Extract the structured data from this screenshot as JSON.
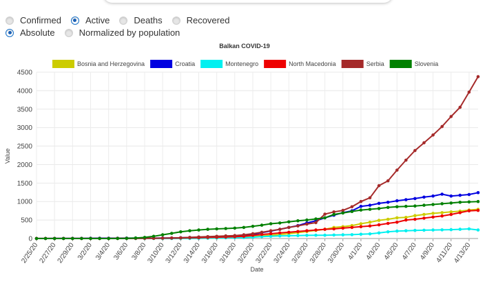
{
  "controls": {
    "metric_options": [
      {
        "label": "Confirmed",
        "selected": false
      },
      {
        "label": "Active",
        "selected": true
      },
      {
        "label": "Deaths",
        "selected": false
      },
      {
        "label": "Recovered",
        "selected": false
      }
    ],
    "scale_options": [
      {
        "label": "Absolute",
        "selected": true
      },
      {
        "label": "Normalized by population",
        "selected": false
      }
    ]
  },
  "chart_data": {
    "type": "line",
    "title": "Balkan COVID-19",
    "xlabel": "Date",
    "ylabel": "Value",
    "ylim": [
      0,
      4500
    ],
    "yticks": [
      0,
      500,
      1000,
      1500,
      2000,
      2500,
      3000,
      3500,
      4000,
      4500
    ],
    "grid": true,
    "legend_position": "top",
    "x": [
      "2/25/20",
      "2/26/20",
      "2/27/20",
      "2/28/20",
      "2/29/20",
      "3/1/20",
      "3/2/20",
      "3/3/20",
      "3/4/20",
      "3/5/20",
      "3/6/20",
      "3/7/20",
      "3/8/20",
      "3/9/20",
      "3/10/20",
      "3/11/20",
      "3/12/20",
      "3/13/20",
      "3/14/20",
      "3/15/20",
      "3/16/20",
      "3/17/20",
      "3/18/20",
      "3/19/20",
      "3/20/20",
      "3/21/20",
      "3/22/20",
      "3/23/20",
      "3/24/20",
      "3/25/20",
      "3/26/20",
      "3/27/20",
      "3/28/20",
      "3/29/20",
      "3/30/20",
      "3/31/20",
      "4/1/20",
      "4/2/20",
      "4/3/20",
      "4/4/20",
      "4/5/20",
      "4/6/20",
      "4/7/20",
      "4/8/20",
      "4/9/20",
      "4/10/20",
      "4/11/20",
      "4/12/20",
      "4/13/20",
      "4/14/20"
    ],
    "xtick_labels": [
      "2/25/20",
      "2/27/20",
      "2/29/20",
      "3/2/20",
      "3/4/20",
      "3/6/20",
      "3/8/20",
      "3/10/20",
      "3/12/20",
      "3/14/20",
      "3/16/20",
      "3/18/20",
      "3/20/20",
      "3/22/20",
      "3/24/20",
      "3/26/20",
      "3/28/20",
      "3/30/20",
      "4/1/20",
      "4/3/20",
      "4/5/20",
      "4/7/20",
      "4/9/20",
      "4/11/20",
      "4/13/20"
    ],
    "series": [
      {
        "name": "Bosnia and Herzegovina",
        "color": "#cccc00",
        "values": [
          0,
          0,
          0,
          0,
          0,
          0,
          0,
          0,
          0,
          0,
          0,
          0,
          0,
          1,
          2,
          3,
          4,
          5,
          7,
          10,
          15,
          20,
          25,
          35,
          50,
          70,
          90,
          110,
          130,
          160,
          190,
          220,
          250,
          300,
          320,
          350,
          400,
          440,
          490,
          520,
          560,
          570,
          620,
          650,
          680,
          700,
          720,
          740,
          770,
          790
        ]
      },
      {
        "name": "Croatia",
        "color": "#0000e0",
        "values": [
          1,
          2,
          3,
          3,
          5,
          6,
          7,
          9,
          9,
          10,
          11,
          11,
          12,
          12,
          13,
          14,
          20,
          27,
          35,
          40,
          50,
          60,
          70,
          85,
          110,
          160,
          200,
          250,
          300,
          350,
          420,
          480,
          560,
          630,
          700,
          750,
          870,
          900,
          950,
          980,
          1020,
          1050,
          1080,
          1120,
          1150,
          1200,
          1150,
          1170,
          1190,
          1240
        ]
      },
      {
        "name": "Montenegro",
        "color": "#00f0f0",
        "values": [
          0,
          0,
          0,
          0,
          0,
          0,
          0,
          0,
          0,
          0,
          0,
          0,
          0,
          0,
          0,
          0,
          1,
          2,
          5,
          10,
          15,
          18,
          21,
          25,
          35,
          50,
          60,
          70,
          75,
          80,
          85,
          90,
          90,
          95,
          100,
          105,
          115,
          125,
          150,
          180,
          200,
          210,
          220,
          225,
          230,
          235,
          240,
          250,
          260,
          230
        ]
      },
      {
        "name": "North Macedonia",
        "color": "#ee0000",
        "values": [
          1,
          1,
          1,
          1,
          1,
          1,
          1,
          1,
          2,
          3,
          5,
          7,
          7,
          7,
          9,
          12,
          14,
          20,
          25,
          30,
          35,
          40,
          48,
          60,
          85,
          110,
          130,
          150,
          170,
          190,
          210,
          230,
          250,
          260,
          280,
          300,
          320,
          340,
          370,
          410,
          440,
          500,
          520,
          550,
          580,
          610,
          650,
          700,
          750,
          760
        ]
      },
      {
        "name": "Serbia",
        "color": "#a52a2a",
        "values": [
          0,
          0,
          0,
          0,
          0,
          0,
          0,
          0,
          0,
          0,
          1,
          2,
          4,
          5,
          10,
          15,
          20,
          30,
          40,
          50,
          60,
          70,
          80,
          100,
          130,
          170,
          210,
          250,
          300,
          340,
          390,
          430,
          660,
          720,
          760,
          860,
          1000,
          1100,
          1430,
          1560,
          1850,
          2120,
          2380,
          2590,
          2800,
          3030,
          3300,
          3550,
          3960,
          4380
        ]
      },
      {
        "name": "Slovenia",
        "color": "#008000",
        "values": [
          0,
          0,
          0,
          0,
          0,
          0,
          0,
          0,
          0,
          1,
          5,
          15,
          30,
          60,
          100,
          140,
          180,
          210,
          230,
          250,
          260,
          270,
          280,
          300,
          330,
          360,
          400,
          420,
          450,
          480,
          500,
          530,
          560,
          650,
          690,
          730,
          770,
          790,
          810,
          840,
          860,
          870,
          880,
          900,
          920,
          940,
          960,
          980,
          990,
          1000
        ]
      }
    ]
  }
}
